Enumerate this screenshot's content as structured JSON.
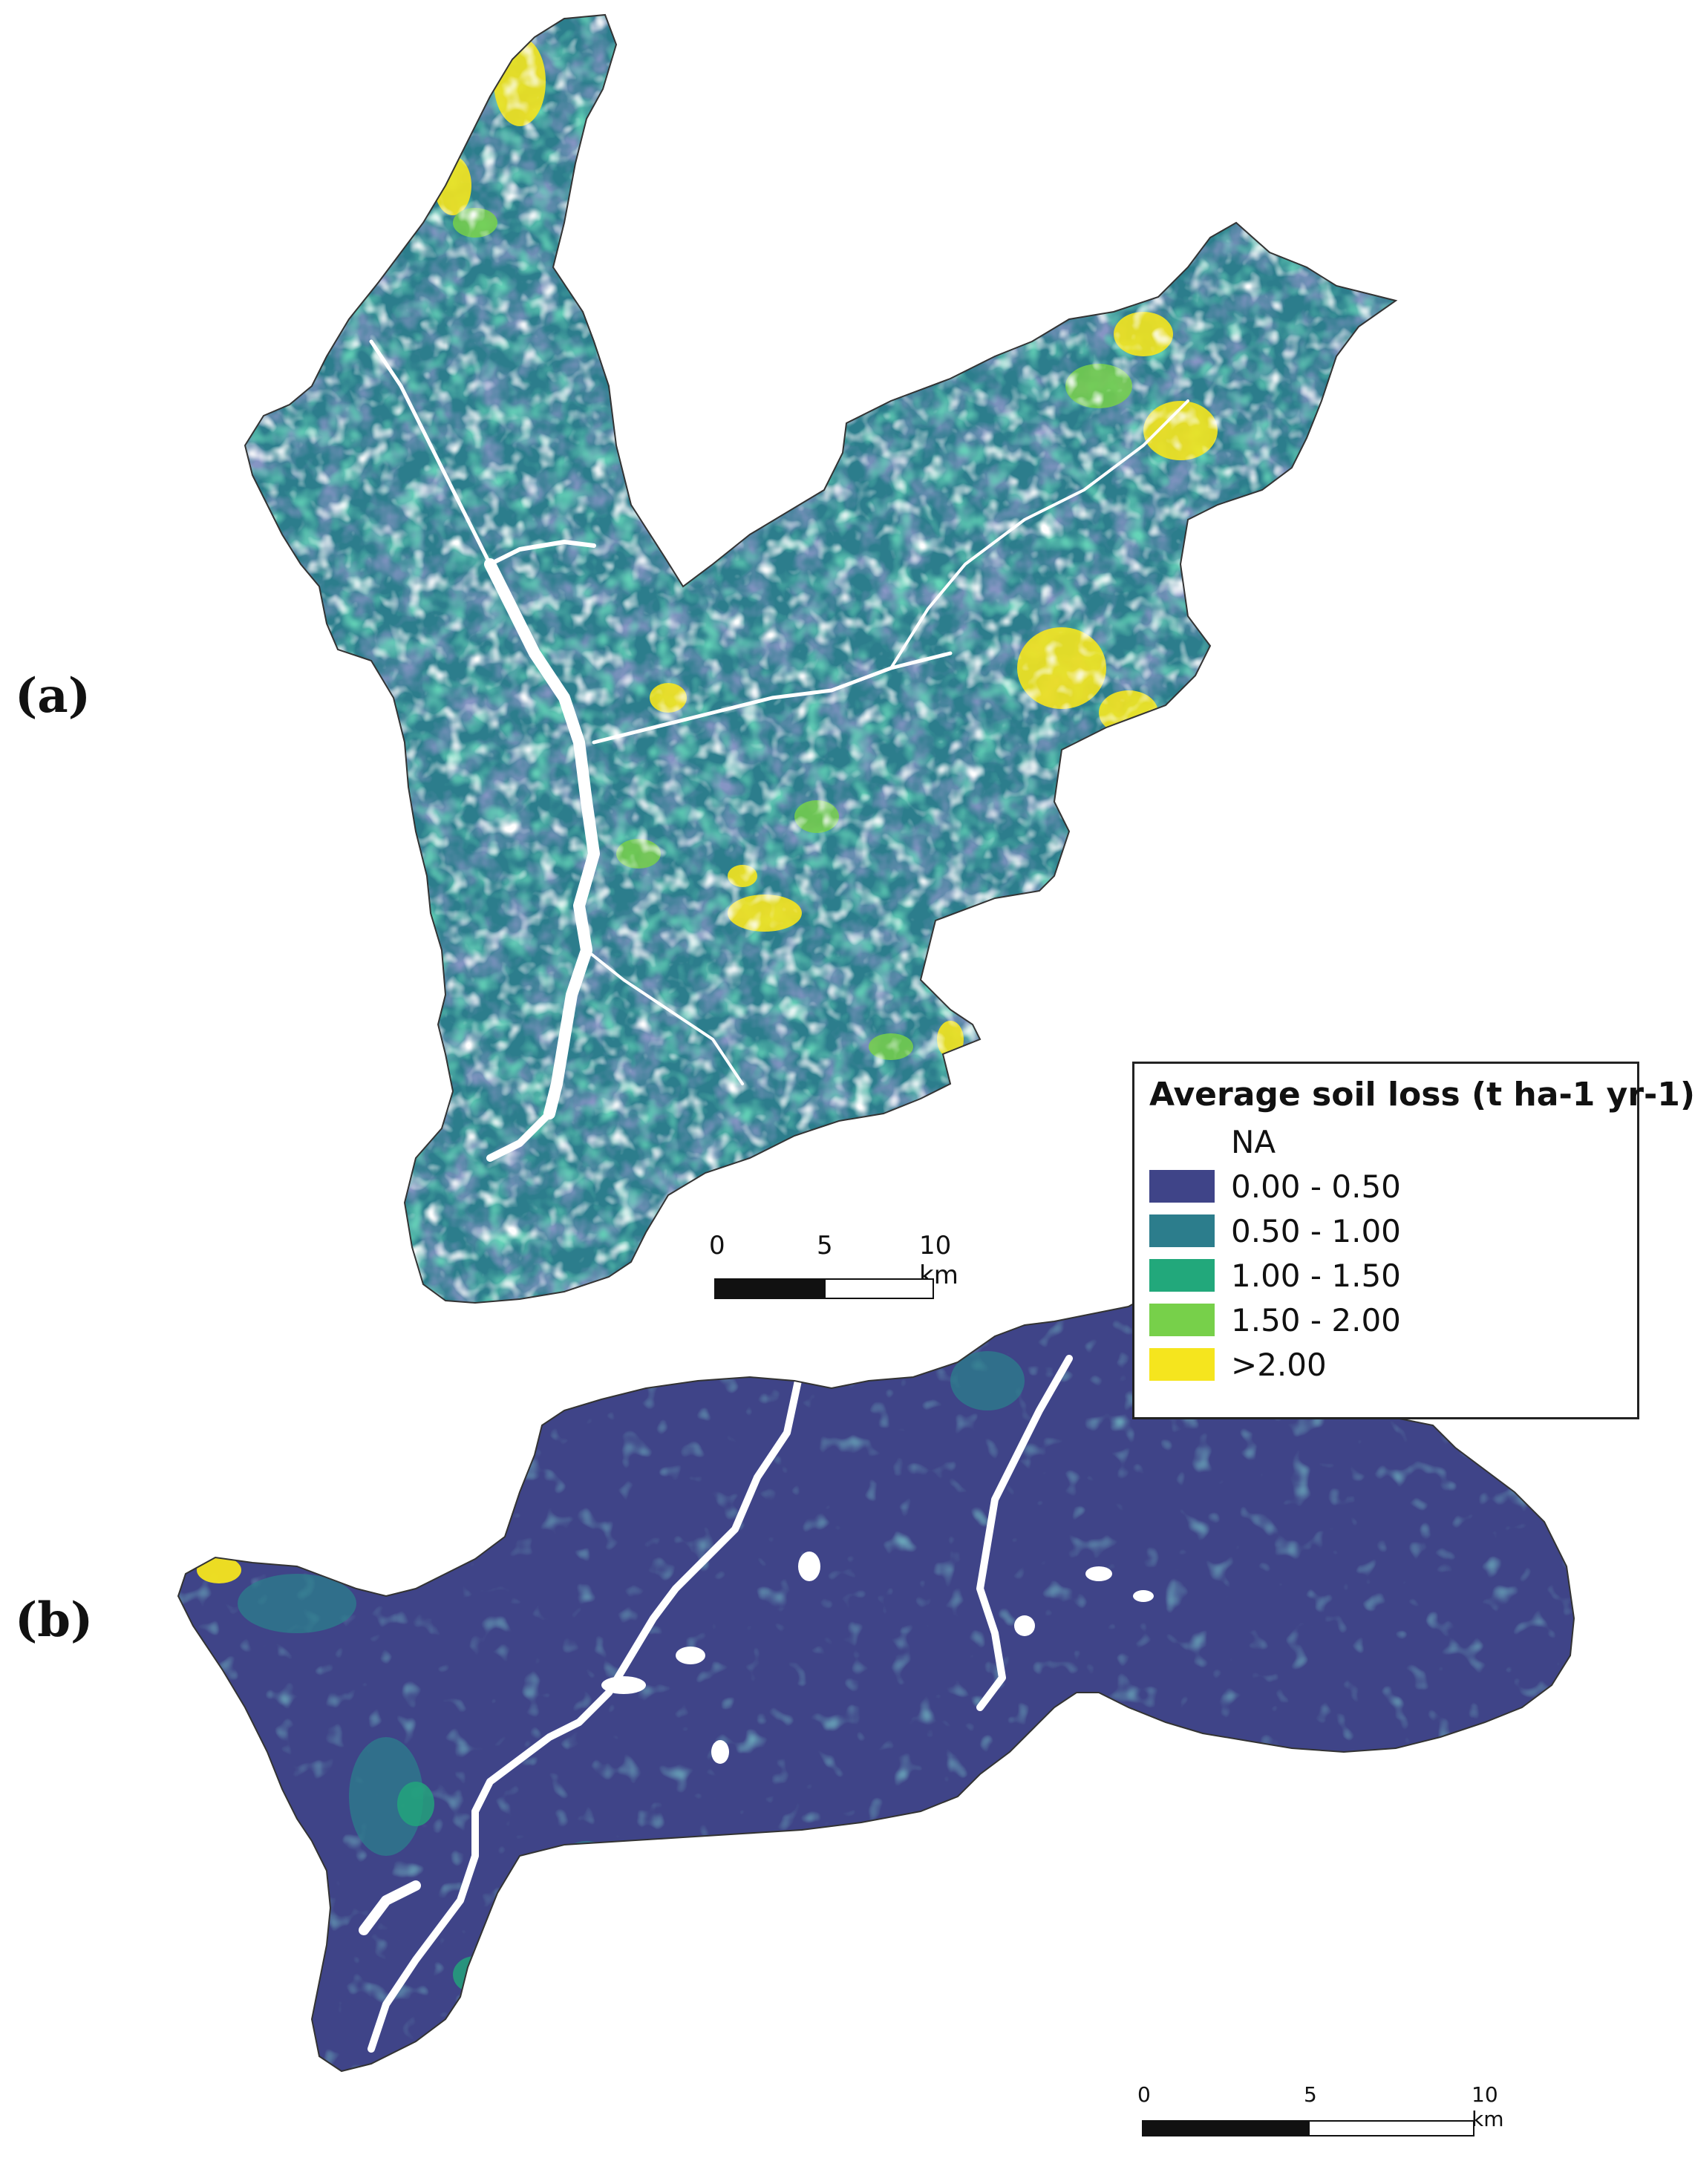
{
  "panels": {
    "a_label": "(a)",
    "b_label": "(b)"
  },
  "legend": {
    "title": "Average soil loss (t ha-1 yr-1)",
    "classes": [
      {
        "label": "NA",
        "color": "#ffffff"
      },
      {
        "label": "0.00 - 0.50",
        "color": "#3f4488"
      },
      {
        "label": "0.50 - 1.00",
        "color": "#2c7d8c"
      },
      {
        "label": "1.00 - 1.50",
        "color": "#22a87b"
      },
      {
        "label": "1.50 - 2.00",
        "color": "#77d04a"
      },
      {
        "label": ">2.00",
        "color": "#f5e51e"
      }
    ]
  },
  "scalebar_a": {
    "t0": "0",
    "t1": "5",
    "t2": "10 km"
  },
  "scalebar_b": {
    "t0": "0",
    "t1": "5",
    "t2": "10 km"
  }
}
